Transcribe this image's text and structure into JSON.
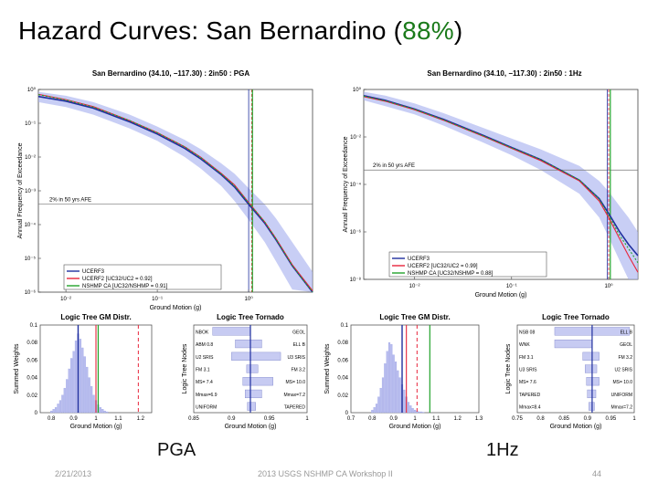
{
  "slide": {
    "title_main": "Hazard Curves: San Bernardino (",
    "title_pct": "88%",
    "title_end": ")",
    "label_pga": "PGA",
    "label_1hz": "1Hz",
    "date": "2/21/2013",
    "footer": "2013 USGS NSHMP CA Workshop II",
    "page": "44",
    "colors": {
      "ucerf3": "#1f2f9e",
      "ucerf2": "#e8253b",
      "nshmp": "#22a32a",
      "band": "#aab3f0",
      "pct_text": "#1a7a1a"
    }
  },
  "chart_data": [
    {
      "type": "line",
      "title": "San Bernardino (34.10, −117.30) : 2in50 : PGA",
      "xlabel": "Ground Motion (g)",
      "ylabel": "Annual Frequency of Exceedance",
      "xscale": "log",
      "yscale": "log",
      "xlim": [
        0.005,
        5
      ],
      "ylim": [
        1e-06,
        1
      ],
      "x_ticks": [
        "10⁻²",
        "10⁻¹",
        "10⁰"
      ],
      "y_ticks": [
        "10⁰",
        "10⁻¹",
        "10⁻²",
        "10⁻³",
        "10⁻⁴",
        "10⁻⁵",
        "10⁻⁶"
      ],
      "annotation": "2% in 50 yrs AFE",
      "afe_line": 0.000404,
      "legend": [
        "UCERF3",
        "UCERF2   [UC32/UC2 = 0.92]",
        "NSHMP CA   [UC32/NSHMP = 0.91]"
      ],
      "series": [
        {
          "name": "UCERF3",
          "x": [
            0.005,
            0.01,
            0.02,
            0.05,
            0.1,
            0.2,
            0.3,
            0.5,
            0.7,
            1.0,
            1.5,
            2.0,
            3.0,
            5.0
          ],
          "values": [
            0.62,
            0.45,
            0.28,
            0.11,
            0.048,
            0.018,
            0.0088,
            0.003,
            0.0013,
            0.0004,
            0.00011,
            3.5e-05,
            6e-06,
            1e-06
          ]
        },
        {
          "name": "UCERF2",
          "x": [
            0.005,
            0.01,
            0.02,
            0.05,
            0.1,
            0.2,
            0.3,
            0.5,
            0.7,
            1.0,
            1.5,
            2.0,
            3.0,
            5.0
          ],
          "values": [
            0.72,
            0.5,
            0.31,
            0.12,
            0.053,
            0.02,
            0.0098,
            0.0033,
            0.0015,
            0.00045,
            0.00012,
            3.8e-05,
            6.5e-06,
            1.1e-06
          ]
        },
        {
          "name": "NSHMP CA",
          "x": [
            0.005,
            0.01,
            0.02,
            0.05,
            0.1,
            0.2,
            0.3,
            0.5,
            0.7,
            1.0,
            1.5,
            2.0,
            3.0,
            5.0
          ],
          "values": [
            0.7,
            0.49,
            0.3,
            0.12,
            0.052,
            0.02,
            0.0096,
            0.0032,
            0.0014,
            0.00044,
            0.00012,
            3.7e-05,
            6.2e-06,
            1e-06
          ]
        }
      ],
      "band": {
        "lower": [
          0.42,
          0.3,
          0.18,
          0.07,
          0.03,
          0.01,
          0.0045,
          0.0014,
          0.0005,
          0.00014,
          3e-05,
          8e-06,
          1.2e-06,
          1e-06
        ],
        "upper": [
          0.85,
          0.65,
          0.42,
          0.18,
          0.08,
          0.032,
          0.017,
          0.0065,
          0.0032,
          0.0012,
          0.0004,
          0.00015,
          3e-05,
          4e-06
        ]
      },
      "vlines": {
        "ucerf3": 1.0,
        "ucerf2": 1.08,
        "nshmp": 1.1
      }
    },
    {
      "type": "line",
      "title": "San Bernardino (34.10, −117.30) : 2in50 : 1Hz",
      "xlabel": "Ground Motion (g)",
      "ylabel": "Annual Frequency of Exceedance",
      "xscale": "log",
      "yscale": "log",
      "xlim": [
        0.003,
        2
      ],
      "ylim": [
        1e-08,
        1
      ],
      "x_ticks": [
        "10⁻²",
        "10⁻¹",
        "10⁰"
      ],
      "y_ticks": [
        "10⁰",
        "10⁻²",
        "10⁻⁴",
        "10⁻⁶",
        "10⁻⁸"
      ],
      "annotation": "2% in 50 yrs AFE",
      "afe_line": 0.000404,
      "legend": [
        "UCERF3",
        "UCERF2   [UC32/UC2 = 0.99]",
        "NSHMP CA   [UC32/NSHMP = 0.88]"
      ],
      "series": [
        {
          "name": "UCERF3",
          "x": [
            0.003,
            0.005,
            0.01,
            0.02,
            0.05,
            0.1,
            0.2,
            0.5,
            0.8,
            1.0,
            1.3,
            1.6,
            2.0
          ],
          "values": [
            0.55,
            0.35,
            0.15,
            0.055,
            0.012,
            0.0036,
            0.0011,
            0.00015,
            2.5e-05,
            6e-06,
            1e-06,
            3e-07,
            1e-07
          ]
        },
        {
          "name": "UCERF2",
          "x": [
            0.003,
            0.005,
            0.01,
            0.02,
            0.05,
            0.1,
            0.2,
            0.5,
            0.8,
            1.0,
            1.3,
            1.6,
            2.0
          ],
          "values": [
            0.5,
            0.32,
            0.14,
            0.05,
            0.011,
            0.0033,
            0.001,
            0.00014,
            2e-05,
            4e-06,
            5e-07,
            1e-07,
            2e-08
          ]
        },
        {
          "name": "NSHMP CA",
          "x": [
            0.003,
            0.005,
            0.01,
            0.02,
            0.05,
            0.1,
            0.2,
            0.5,
            0.8,
            1.0,
            1.3,
            1.6,
            2.0
          ],
          "values": [
            0.52,
            0.33,
            0.145,
            0.052,
            0.0115,
            0.0035,
            0.0011,
            0.000155,
            2.4e-05,
            5e-06,
            7e-07,
            2e-07,
            5e-08
          ]
        }
      ],
      "band": {
        "lower": [
          0.35,
          0.2,
          0.09,
          0.03,
          0.006,
          0.0017,
          0.0004,
          4e-05,
          4e-06,
          6e-07,
          6e-08,
          1e-08,
          1e-08
        ],
        "upper": [
          0.8,
          0.55,
          0.26,
          0.1,
          0.025,
          0.0085,
          0.003,
          0.0006,
          0.00014,
          5e-05,
          1.2e-05,
          4e-06,
          1e-06
        ]
      },
      "vlines": {
        "ucerf3": 0.97,
        "ucerf2": 1.0,
        "nshmp": 1.04
      }
    },
    {
      "type": "bar",
      "title": "Logic Tree GM Distr.",
      "xlabel": "Ground Motion (g)",
      "ylabel": "Summed Weights",
      "xlim": [
        0.75,
        1.25
      ],
      "ylim": [
        0,
        0.1
      ],
      "x_ticks": [
        "0.8",
        "0.9",
        "1",
        "1.1",
        "1.2"
      ],
      "y_ticks": [
        "0",
        "0.02",
        "0.04",
        "0.06",
        "0.08",
        "0.1"
      ],
      "x": [
        0.8,
        0.81,
        0.82,
        0.83,
        0.84,
        0.85,
        0.86,
        0.87,
        0.88,
        0.89,
        0.9,
        0.91,
        0.92,
        0.93,
        0.94,
        0.95,
        0.96,
        0.97,
        0.98,
        0.99,
        1.0,
        1.01,
        1.02,
        1.03,
        1.04,
        1.05
      ],
      "values": [
        0.002,
        0.004,
        0.006,
        0.01,
        0.014,
        0.02,
        0.028,
        0.038,
        0.05,
        0.062,
        0.07,
        0.082,
        0.09,
        0.084,
        0.074,
        0.064,
        0.052,
        0.04,
        0.03,
        0.02,
        0.014,
        0.009,
        0.006,
        0.004,
        0.002,
        0.001
      ],
      "vlines": {
        "ucerf3": 0.92,
        "ucerf2": 1.0,
        "nshmp": 1.01,
        "dashed": 1.19
      }
    },
    {
      "type": "bar",
      "title": "Logic Tree Tornado",
      "xlabel": "Ground Motion (g)",
      "ylabel": "Logic Tree Nodes",
      "xlim": [
        0.85,
        1.0
      ],
      "x_ticks": [
        "0.85",
        "0.9",
        "0.95",
        "1"
      ],
      "center": 0.925,
      "rows": [
        {
          "left": "NBOK",
          "right": "GEOL",
          "lo": 0.875,
          "hi": 0.925
        },
        {
          "left": "ABM 0.8",
          "right": "ELL B",
          "lo": 0.905,
          "hi": 0.94
        },
        {
          "left": "U2 SRIS",
          "right": "U3 SRIS",
          "lo": 0.9,
          "hi": 0.965
        },
        {
          "left": "FM 3.1",
          "right": "FM 3.2",
          "lo": 0.92,
          "hi": 0.935
        },
        {
          "left": "MS= 7.4",
          "right": "MS= 10.0",
          "lo": 0.915,
          "hi": 0.955
        },
        {
          "left": "Mmax=6.9",
          "right": "Mmax=7.2",
          "lo": 0.918,
          "hi": 0.94
        },
        {
          "left": "UNIFORM",
          "right": "TAPERED",
          "lo": 0.921,
          "hi": 0.932
        }
      ]
    },
    {
      "type": "bar",
      "title": "Logic Tree GM Distr.",
      "xlabel": "Ground Motion (g)",
      "ylabel": "Summed Weights",
      "xlim": [
        0.7,
        1.3
      ],
      "ylim": [
        0,
        0.1
      ],
      "x_ticks": [
        "0.7",
        "0.8",
        "0.9",
        "1",
        "1.1",
        "1.2",
        "1.3"
      ],
      "y_ticks": [
        "0",
        "0.02",
        "0.04",
        "0.06",
        "0.08",
        "0.1"
      ],
      "x": [
        0.8,
        0.81,
        0.82,
        0.83,
        0.84,
        0.85,
        0.86,
        0.87,
        0.88,
        0.89,
        0.9,
        0.91,
        0.92,
        0.93,
        0.94,
        0.95,
        0.96,
        0.97,
        0.98,
        0.99,
        1.0,
        1.01,
        1.02,
        1.03,
        1.04
      ],
      "values": [
        0.003,
        0.006,
        0.01,
        0.018,
        0.028,
        0.04,
        0.056,
        0.07,
        0.08,
        0.078,
        0.066,
        0.058,
        0.048,
        0.04,
        0.032,
        0.026,
        0.018,
        0.012,
        0.008,
        0.005,
        0.003,
        0.002,
        0.001,
        0.001,
        0.0005
      ],
      "vlines": {
        "ucerf3": 0.94,
        "ucerf2": 0.96,
        "nshmp": 1.07,
        "dashed": 1.01
      }
    },
    {
      "type": "bar",
      "title": "Logic Tree Tornado",
      "xlabel": "Ground Motion (g)",
      "ylabel": "Logic Tree Nodes",
      "xlim": [
        0.75,
        1.0
      ],
      "x_ticks": [
        "0.75",
        "0.8",
        "0.85",
        "0.9",
        "0.95",
        "1"
      ],
      "center": 0.91,
      "rows": [
        {
          "left": "NSB 08",
          "right": "ELL B",
          "lo": 0.83,
          "hi": 0.99
        },
        {
          "left": "WNK",
          "right": "GEOL",
          "lo": 0.83,
          "hi": 0.91
        },
        {
          "left": "FM 3.1",
          "right": "FM 3.2",
          "lo": 0.89,
          "hi": 0.925
        },
        {
          "left": "U3 SRIS",
          "right": "U2 SRIS",
          "lo": 0.895,
          "hi": 0.92
        },
        {
          "left": "MS= 7.6",
          "right": "MS= 10.0",
          "lo": 0.898,
          "hi": 0.925
        },
        {
          "left": "TAPERED",
          "right": "UNIFORM",
          "lo": 0.9,
          "hi": 0.918
        },
        {
          "left": "Mmax=8.4",
          "right": "Mmax=7.2",
          "lo": 0.903,
          "hi": 0.915
        }
      ]
    }
  ]
}
